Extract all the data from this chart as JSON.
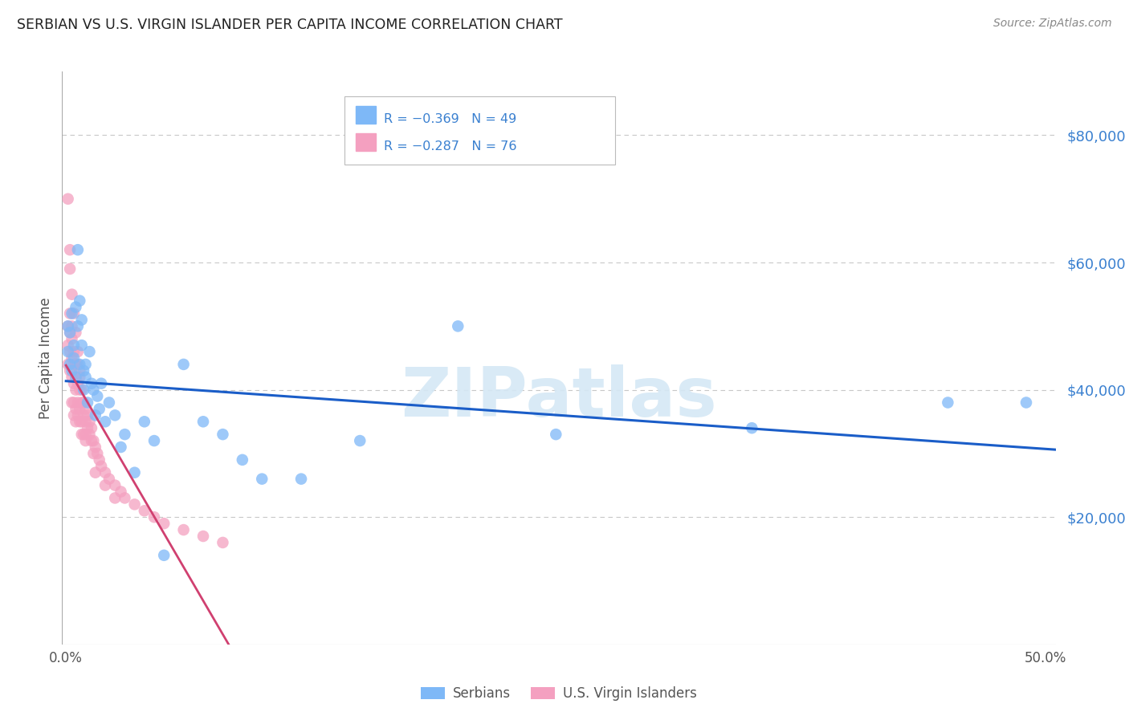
{
  "title": "SERBIAN VS U.S. VIRGIN ISLANDER PER CAPITA INCOME CORRELATION CHART",
  "source": "Source: ZipAtlas.com",
  "ylabel": "Per Capita Income",
  "yticks": [
    20000,
    40000,
    60000,
    80000
  ],
  "ytick_labels": [
    "$20,000",
    "$40,000",
    "$60,000",
    "$80,000"
  ],
  "ylim": [
    0,
    90000
  ],
  "xlim": [
    -0.002,
    0.505
  ],
  "watermark": "ZIPatlas",
  "serbians_color": "#7EB8F7",
  "virgin_islanders_color": "#F4A0C0",
  "trend_serbian_color": "#1A5DC8",
  "trend_virgin_color": "#D04070",
  "serbians_x": [
    0.001,
    0.001,
    0.002,
    0.002,
    0.003,
    0.003,
    0.004,
    0.004,
    0.005,
    0.005,
    0.006,
    0.006,
    0.007,
    0.007,
    0.008,
    0.008,
    0.009,
    0.009,
    0.01,
    0.01,
    0.011,
    0.012,
    0.013,
    0.014,
    0.015,
    0.016,
    0.017,
    0.018,
    0.02,
    0.022,
    0.025,
    0.028,
    0.03,
    0.035,
    0.04,
    0.045,
    0.05,
    0.06,
    0.07,
    0.08,
    0.09,
    0.1,
    0.12,
    0.15,
    0.2,
    0.25,
    0.35,
    0.45,
    0.49
  ],
  "serbians_y": [
    46000,
    50000,
    44000,
    49000,
    43000,
    52000,
    47000,
    45000,
    53000,
    42000,
    50000,
    62000,
    54000,
    44000,
    47000,
    51000,
    43000,
    40000,
    44000,
    42000,
    38000,
    46000,
    41000,
    40000,
    36000,
    39000,
    37000,
    41000,
    35000,
    38000,
    36000,
    31000,
    33000,
    27000,
    35000,
    32000,
    14000,
    44000,
    35000,
    33000,
    29000,
    26000,
    26000,
    32000,
    50000,
    33000,
    34000,
    38000,
    38000
  ],
  "virgin_x": [
    0.001,
    0.001,
    0.001,
    0.001,
    0.002,
    0.002,
    0.002,
    0.002,
    0.002,
    0.003,
    0.003,
    0.003,
    0.003,
    0.003,
    0.004,
    0.004,
    0.004,
    0.004,
    0.004,
    0.005,
    0.005,
    0.005,
    0.005,
    0.005,
    0.006,
    0.006,
    0.006,
    0.006,
    0.007,
    0.007,
    0.007,
    0.007,
    0.008,
    0.008,
    0.008,
    0.008,
    0.009,
    0.009,
    0.009,
    0.01,
    0.01,
    0.01,
    0.011,
    0.011,
    0.012,
    0.012,
    0.013,
    0.013,
    0.014,
    0.014,
    0.015,
    0.016,
    0.017,
    0.018,
    0.02,
    0.022,
    0.025,
    0.028,
    0.03,
    0.035,
    0.04,
    0.045,
    0.05,
    0.06,
    0.07,
    0.08,
    0.002,
    0.003,
    0.004,
    0.005,
    0.006,
    0.007,
    0.015,
    0.02,
    0.025,
    0.01
  ],
  "virgin_y": [
    70000,
    50000,
    47000,
    44000,
    62000,
    52000,
    49000,
    46000,
    43000,
    48000,
    45000,
    42000,
    50000,
    38000,
    46000,
    44000,
    41000,
    38000,
    36000,
    44000,
    42000,
    40000,
    37000,
    35000,
    44000,
    41000,
    38000,
    36000,
    42000,
    40000,
    37000,
    35000,
    40000,
    38000,
    35000,
    33000,
    38000,
    36000,
    33000,
    37000,
    35000,
    33000,
    36000,
    34000,
    35000,
    33000,
    34000,
    32000,
    32000,
    30000,
    31000,
    30000,
    29000,
    28000,
    27000,
    26000,
    25000,
    24000,
    23000,
    22000,
    21000,
    20000,
    19000,
    18000,
    17000,
    16000,
    59000,
    55000,
    52000,
    49000,
    46000,
    43000,
    27000,
    25000,
    23000,
    32000
  ],
  "legend_serbian_text": "R = −0.369   N = 49",
  "legend_virgin_text": "R = −0.287   N = 76",
  "xtick_positions": [
    0.0,
    0.1,
    0.2,
    0.3,
    0.4,
    0.5
  ],
  "xtick_labels": [
    "0.0%",
    "",
    "",
    "",
    "",
    "50.0%"
  ]
}
